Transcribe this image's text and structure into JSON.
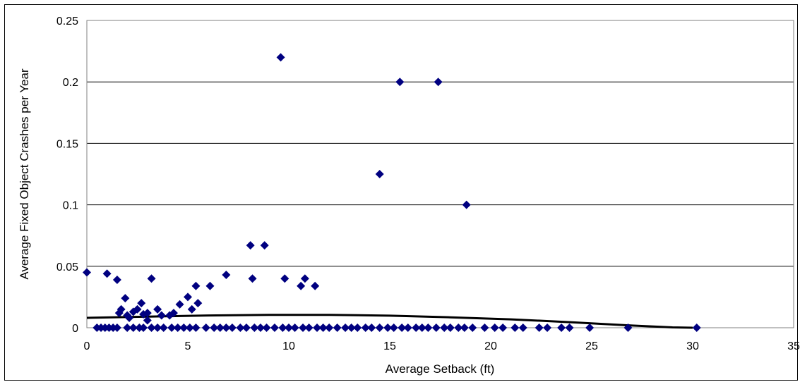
{
  "chart_data": {
    "type": "scatter",
    "title": "",
    "xlabel": "Average Setback (ft)",
    "ylabel": "Average Fixed Object Crashes per Year",
    "xlim": [
      0,
      35
    ],
    "ylim": [
      0,
      0.25
    ],
    "x_ticks": [
      "0",
      "5",
      "10",
      "15",
      "20",
      "25",
      "30",
      "35"
    ],
    "y_ticks": [
      "0",
      "0.05",
      "0.1",
      "0.15",
      "0.2",
      "0.25"
    ],
    "grid": "horizontal",
    "legend": "none",
    "colors": {
      "points": "#000080",
      "trend": "#000000",
      "plot_border": "#808080",
      "gridline": "#000000"
    },
    "series": [
      {
        "type": "scatter",
        "points": [
          [
            0.0,
            0.045
          ],
          [
            1.0,
            0.044
          ],
          [
            1.5,
            0.039
          ],
          [
            1.6,
            0.012
          ],
          [
            1.7,
            0.015
          ],
          [
            1.9,
            0.024
          ],
          [
            2.0,
            0.01
          ],
          [
            2.1,
            0.008
          ],
          [
            2.3,
            0.013
          ],
          [
            2.5,
            0.015
          ],
          [
            2.7,
            0.02
          ],
          [
            2.8,
            0.011
          ],
          [
            3.0,
            0.012
          ],
          [
            3.0,
            0.006
          ],
          [
            3.2,
            0.04
          ],
          [
            3.5,
            0.015
          ],
          [
            3.7,
            0.01
          ],
          [
            4.1,
            0.01
          ],
          [
            4.3,
            0.012
          ],
          [
            4.6,
            0.019
          ],
          [
            5.0,
            0.025
          ],
          [
            5.2,
            0.015
          ],
          [
            5.4,
            0.034
          ],
          [
            5.5,
            0.02
          ],
          [
            6.1,
            0.034
          ],
          [
            6.9,
            0.043
          ],
          [
            8.1,
            0.067
          ],
          [
            8.2,
            0.04
          ],
          [
            8.8,
            0.067
          ],
          [
            9.6,
            0.22
          ],
          [
            9.8,
            0.04
          ],
          [
            10.6,
            0.034
          ],
          [
            10.8,
            0.04
          ],
          [
            11.3,
            0.034
          ],
          [
            14.5,
            0.125
          ],
          [
            15.5,
            0.2
          ],
          [
            17.4,
            0.2
          ],
          [
            18.8,
            0.1
          ],
          [
            0.5,
            0
          ],
          [
            0.7,
            0
          ],
          [
            0.9,
            0
          ],
          [
            1.1,
            0
          ],
          [
            1.3,
            0
          ],
          [
            1.5,
            0
          ],
          [
            2.0,
            0
          ],
          [
            2.3,
            0
          ],
          [
            2.6,
            0
          ],
          [
            2.8,
            0
          ],
          [
            3.2,
            0
          ],
          [
            3.5,
            0
          ],
          [
            3.8,
            0
          ],
          [
            4.2,
            0
          ],
          [
            4.5,
            0
          ],
          [
            4.8,
            0
          ],
          [
            5.1,
            0
          ],
          [
            5.4,
            0
          ],
          [
            5.9,
            0
          ],
          [
            6.3,
            0
          ],
          [
            6.6,
            0
          ],
          [
            6.9,
            0
          ],
          [
            7.2,
            0
          ],
          [
            7.6,
            0
          ],
          [
            7.9,
            0
          ],
          [
            8.3,
            0
          ],
          [
            8.6,
            0
          ],
          [
            8.9,
            0
          ],
          [
            9.3,
            0
          ],
          [
            9.7,
            0
          ],
          [
            10.0,
            0
          ],
          [
            10.3,
            0
          ],
          [
            10.7,
            0
          ],
          [
            11.0,
            0
          ],
          [
            11.4,
            0
          ],
          [
            11.7,
            0
          ],
          [
            12.0,
            0
          ],
          [
            12.4,
            0
          ],
          [
            12.8,
            0
          ],
          [
            13.1,
            0
          ],
          [
            13.4,
            0
          ],
          [
            13.8,
            0
          ],
          [
            14.1,
            0
          ],
          [
            14.5,
            0
          ],
          [
            14.9,
            0
          ],
          [
            15.2,
            0
          ],
          [
            15.6,
            0
          ],
          [
            15.9,
            0
          ],
          [
            16.3,
            0
          ],
          [
            16.6,
            0
          ],
          [
            16.9,
            0
          ],
          [
            17.3,
            0
          ],
          [
            17.7,
            0
          ],
          [
            18.0,
            0
          ],
          [
            18.4,
            0
          ],
          [
            18.7,
            0
          ],
          [
            19.1,
            0
          ],
          [
            19.7,
            0
          ],
          [
            20.2,
            0
          ],
          [
            20.6,
            0
          ],
          [
            21.2,
            0
          ],
          [
            21.6,
            0
          ],
          [
            22.4,
            0
          ],
          [
            22.8,
            0
          ],
          [
            23.5,
            0
          ],
          [
            23.9,
            0
          ],
          [
            24.9,
            0
          ],
          [
            26.8,
            0
          ],
          [
            30.2,
            0
          ]
        ]
      },
      {
        "type": "line",
        "points": [
          [
            0,
            0.008
          ],
          [
            3,
            0.009
          ],
          [
            6,
            0.01
          ],
          [
            9,
            0.0105
          ],
          [
            12,
            0.0105
          ],
          [
            15,
            0.0098
          ],
          [
            18,
            0.0085
          ],
          [
            21,
            0.0068
          ],
          [
            24,
            0.0045
          ],
          [
            27,
            0.0018
          ],
          [
            29,
            0.0003
          ],
          [
            30,
            0
          ]
        ]
      }
    ]
  }
}
